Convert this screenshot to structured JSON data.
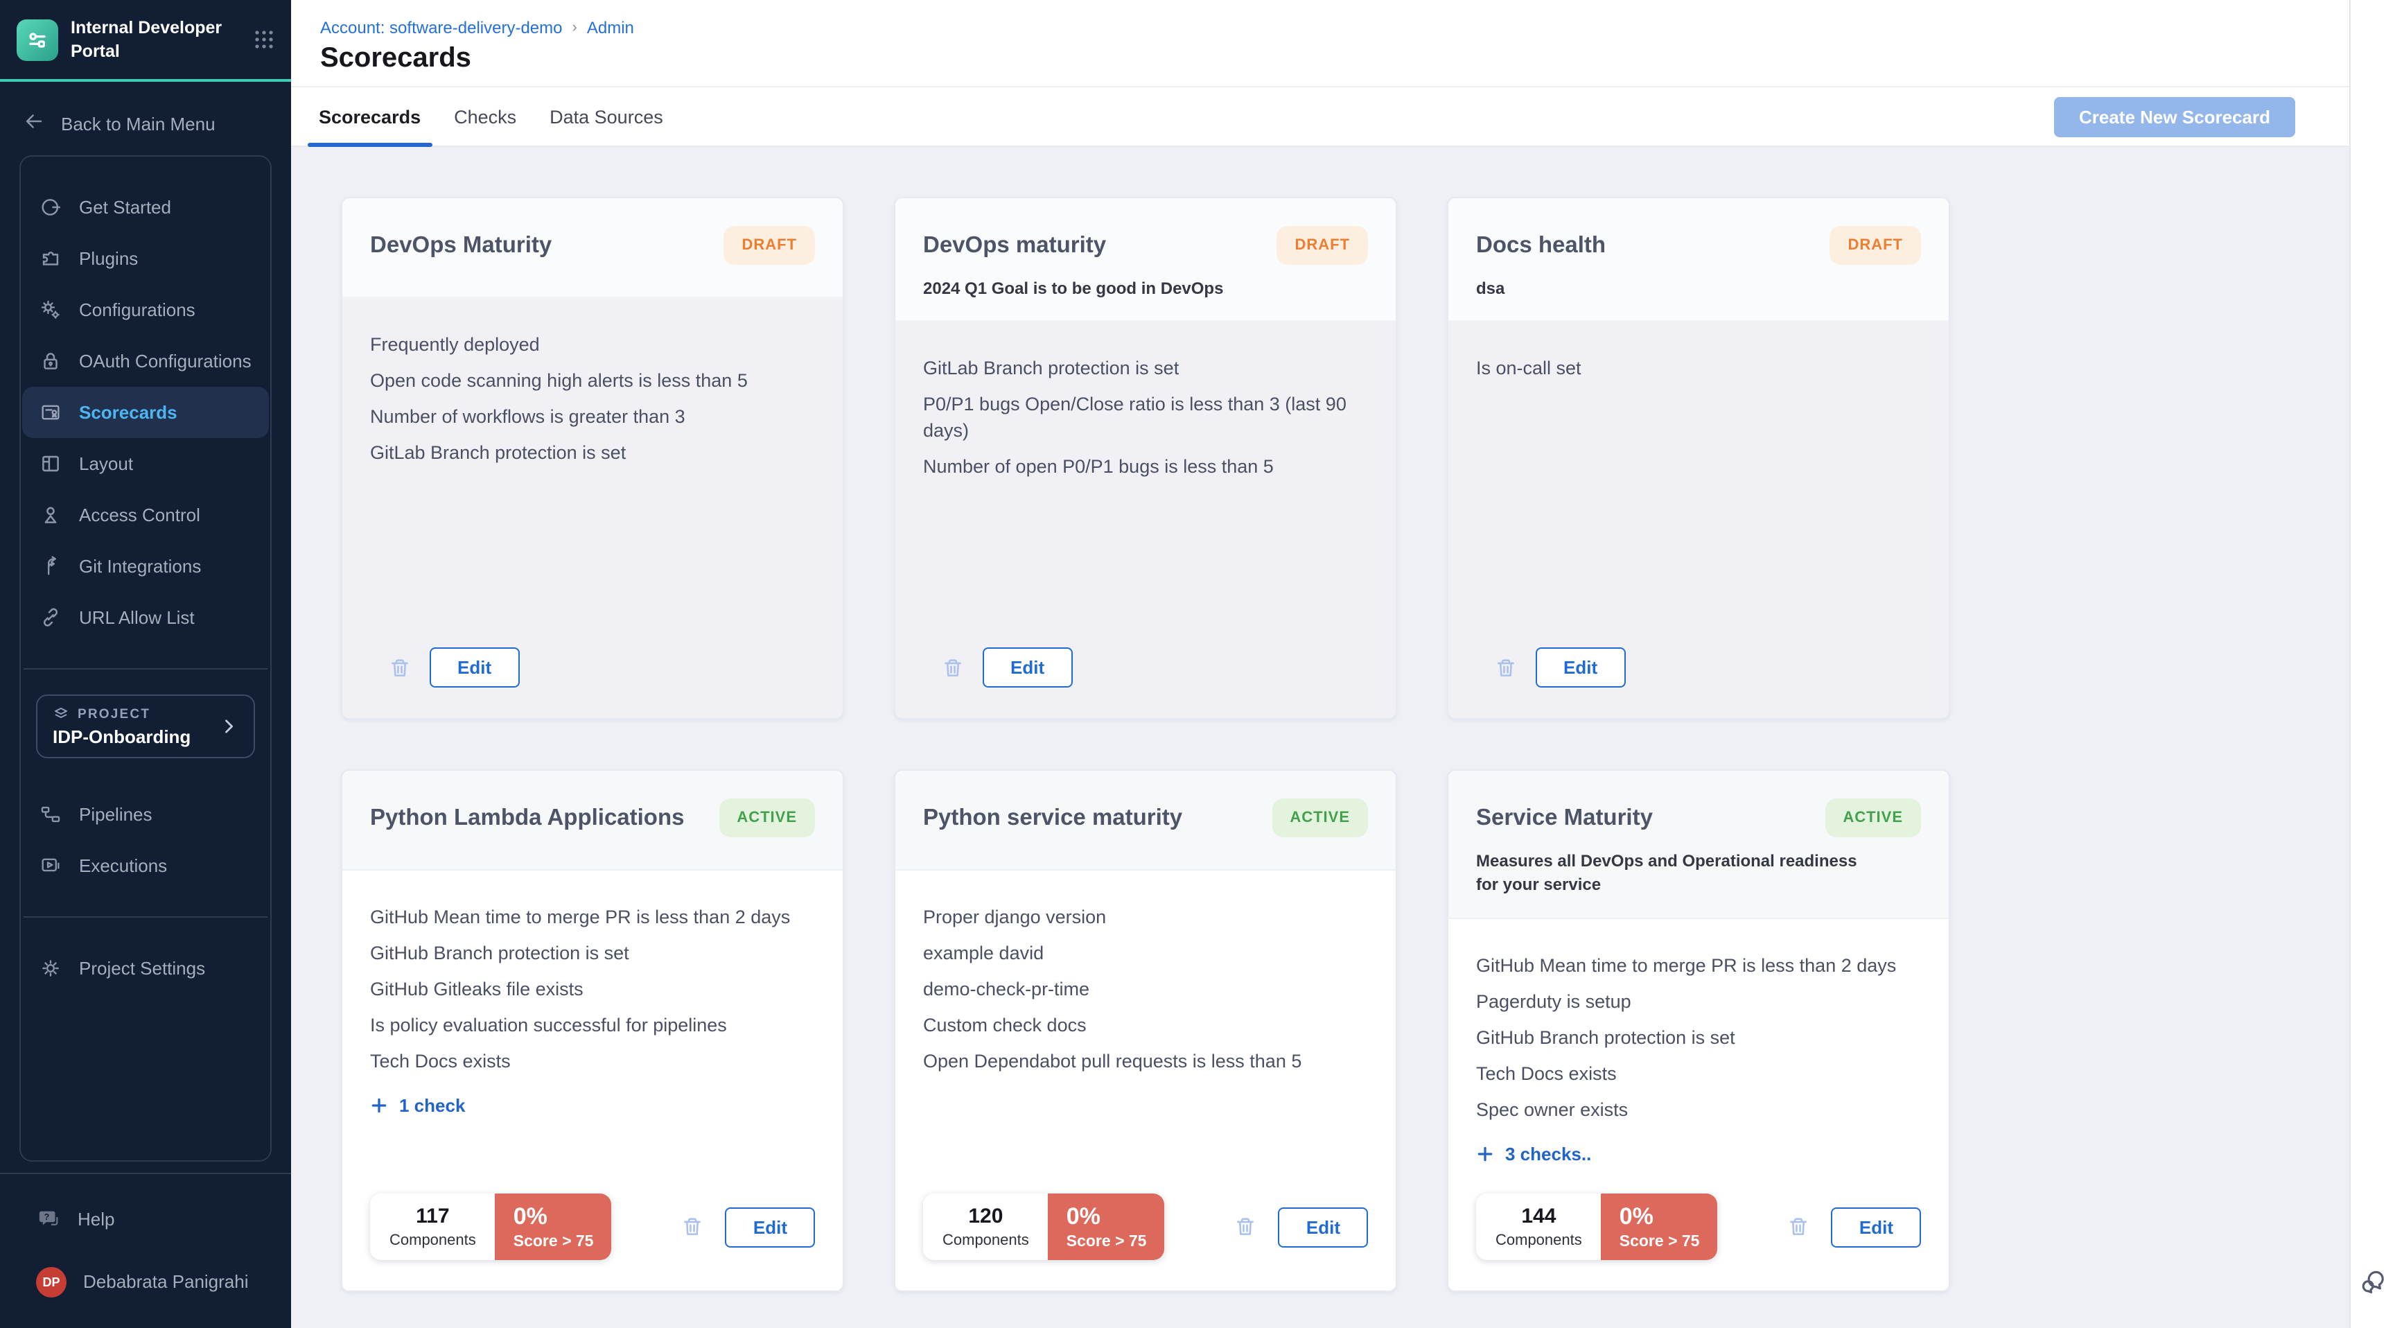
{
  "colors": {
    "sidebar_bg": "#111e33",
    "accent_teal": "#3ecdb2",
    "link_blue": "#2470d8",
    "tab_underline_blue": "#2467cd",
    "draft_text": "#ed7d31",
    "draft_bg": "#fdefe0",
    "active_text": "#43a14e",
    "active_bg": "#e3f3de",
    "score_red": "#dc695b",
    "edit_blue": "#1f6bd0",
    "avatar_red": "#c63d33",
    "selected_nav_text": "#4db5f2"
  },
  "sidebar": {
    "app_title": "Internal Developer Portal",
    "back_label": "Back to Main Menu",
    "nav_items": [
      {
        "label": "Get Started",
        "icon": "get-started-icon",
        "active": false
      },
      {
        "label": "Plugins",
        "icon": "plugins-icon",
        "active": false
      },
      {
        "label": "Configurations",
        "icon": "configurations-icon",
        "active": false
      },
      {
        "label": "OAuth Configurations",
        "icon": "oauth-lock-icon",
        "active": false
      },
      {
        "label": "Scorecards",
        "icon": "scorecards-icon",
        "active": true
      },
      {
        "label": "Layout",
        "icon": "layout-icon",
        "active": false
      },
      {
        "label": "Access Control",
        "icon": "person-icon",
        "active": false
      },
      {
        "label": "Git Integrations",
        "icon": "git-branch-icon",
        "active": false
      },
      {
        "label": "URL Allow List",
        "icon": "link-icon",
        "active": false
      }
    ],
    "project": {
      "label": "PROJECT",
      "name": "IDP-Onboarding"
    },
    "pipeline_items": [
      {
        "label": "Pipelines",
        "icon": "pipelines-icon"
      },
      {
        "label": "Executions",
        "icon": "executions-icon"
      }
    ],
    "settings_label": "Project Settings",
    "help_label": "Help",
    "user": {
      "initials": "DP",
      "name": "Debabrata Panigrahi"
    }
  },
  "header": {
    "breadcrumb_account": "Account: software-delivery-demo",
    "breadcrumb_page": "Admin",
    "title": "Scorecards"
  },
  "tabs": [
    {
      "label": "Scorecards",
      "active": true
    },
    {
      "label": "Checks",
      "active": false
    },
    {
      "label": "Data Sources",
      "active": false
    }
  ],
  "toolbar": {
    "create_label": "Create New Scorecard"
  },
  "labels": {
    "edit": "Edit"
  },
  "cards": [
    {
      "name": "DevOps Maturity",
      "status": "DRAFT",
      "status_type": "draft",
      "description": "",
      "checks": [
        "Frequently deployed",
        "Open code scanning high alerts is less than 5",
        "Number of workflows is greater than 3",
        "GitLab Branch protection is set"
      ]
    },
    {
      "name": "DevOps maturity",
      "status": "DRAFT",
      "status_type": "draft",
      "description": "2024 Q1 Goal is to be good in DevOps",
      "checks": [
        "GitLab Branch protection is set",
        "P0/P1 bugs Open/Close ratio is less than 3 (last 90 days)",
        "Number of open P0/P1 bugs is less than 5"
      ]
    },
    {
      "name": "Docs health",
      "status": "DRAFT",
      "status_type": "draft",
      "description": "dsa",
      "checks": [
        "Is on-call set"
      ]
    },
    {
      "name": "Python Lambda Applications",
      "status": "ACTIVE",
      "status_type": "active",
      "description": "",
      "checks": [
        "GitHub Mean time to merge PR is less than 2 days",
        "GitHub Branch protection is set",
        "GitHub Gitleaks file exists",
        "Is policy evaluation successful for pipelines",
        "Tech Docs exists"
      ],
      "more_label": "1 check",
      "stats": {
        "components": "117",
        "components_label": "Components",
        "score": "0%",
        "score_label": "Score > 75"
      }
    },
    {
      "name": "Python service maturity",
      "status": "ACTIVE",
      "status_type": "active",
      "description": "",
      "checks": [
        "Proper django version",
        "example david",
        "demo-check-pr-time",
        "Custom check docs",
        "Open Dependabot pull requests is less than 5"
      ],
      "stats": {
        "components": "120",
        "components_label": "Components",
        "score": "0%",
        "score_label": "Score > 75"
      }
    },
    {
      "name": "Service Maturity",
      "status": "ACTIVE",
      "status_type": "active",
      "description": "Measures all DevOps and Operational readiness for your service",
      "checks": [
        "GitHub Mean time to merge PR is less than 2 days",
        "Pagerduty is setup",
        "GitHub Branch protection is set",
        "Tech Docs exists",
        "Spec owner exists"
      ],
      "more_label": "3 checks..",
      "stats": {
        "components": "144",
        "components_label": "Components",
        "score": "0%",
        "score_label": "Score > 75"
      }
    }
  ]
}
